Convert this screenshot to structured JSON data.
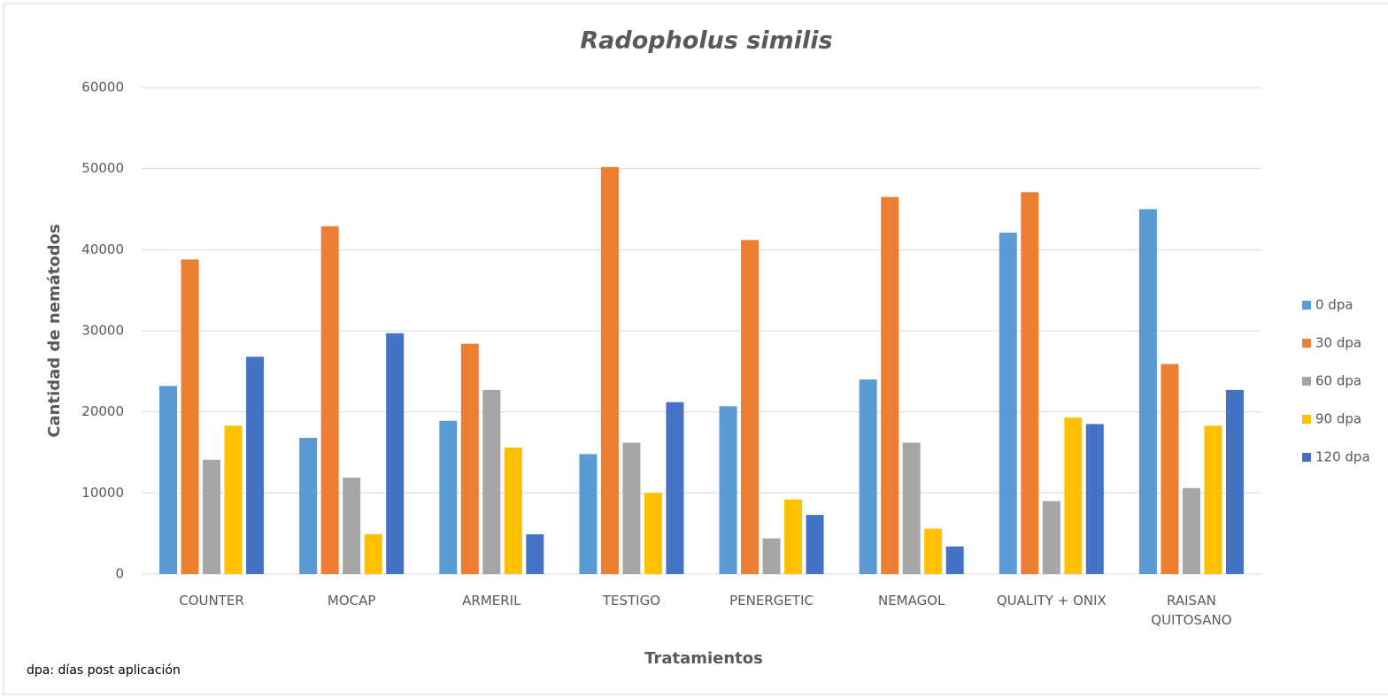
{
  "chart_data": {
    "type": "bar",
    "title": "Radopholus similis",
    "x_label": "Tratamientos",
    "y_label": "Cantidad de nemátodos",
    "note": "dpa: días post aplicación",
    "categories": [
      "COUNTER",
      "MOCAP",
      "ARMERIL",
      "TESTIGO",
      "PENERGETIC",
      "NEMAGOL",
      "QUALITY + ONIX",
      "RAISAN\nQUITOSANO"
    ],
    "series": [
      {
        "name": "0 dpa",
        "color": "#5b9bd5",
        "values": [
          23200,
          16800,
          18900,
          14800,
          20700,
          24000,
          42100,
          45000
        ]
      },
      {
        "name": "30 dpa",
        "color": "#ed7d31",
        "values": [
          38800,
          42900,
          28400,
          50200,
          41200,
          46500,
          47100,
          25900
        ]
      },
      {
        "name": "60 dpa",
        "color": "#a5a5a5",
        "values": [
          14100,
          11900,
          22700,
          16200,
          4400,
          16200,
          9000,
          10600
        ]
      },
      {
        "name": "90 dpa",
        "color": "#ffc000",
        "values": [
          18300,
          4900,
          15600,
          10000,
          9200,
          5600,
          19300,
          18300
        ]
      },
      {
        "name": "120 dpa",
        "color": "#4472c4",
        "values": [
          26800,
          29700,
          4900,
          21200,
          7300,
          3400,
          18500,
          22700
        ]
      }
    ],
    "ylim": [
      0,
      60000
    ],
    "yticks": [
      0,
      10000,
      20000,
      30000,
      40000,
      50000,
      60000
    ],
    "grid": true,
    "legend": "right"
  }
}
